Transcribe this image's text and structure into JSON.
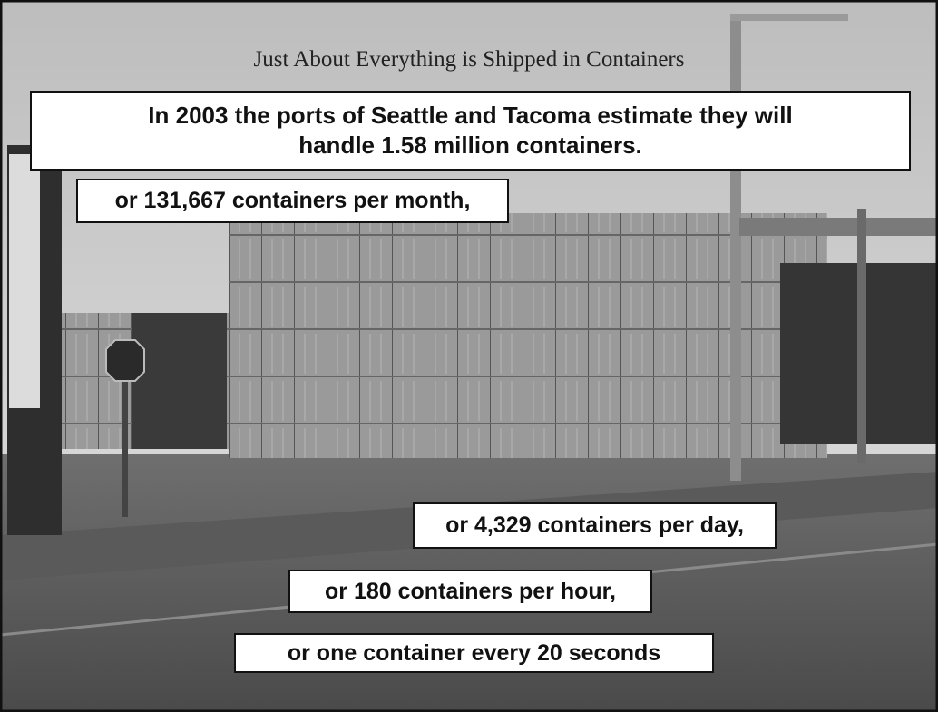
{
  "title": "Just About Everything is Shipped in Containers",
  "headline": [
    "In 2003 the ports of Seattle and Tacoma estimate they will",
    "handle 1.58 million containers."
  ],
  "callouts": [
    "or 131,667 containers per month,",
    "or 4,329 containers per day,",
    "or 180 containers per hour,",
    "or one container every 20 seconds"
  ]
}
